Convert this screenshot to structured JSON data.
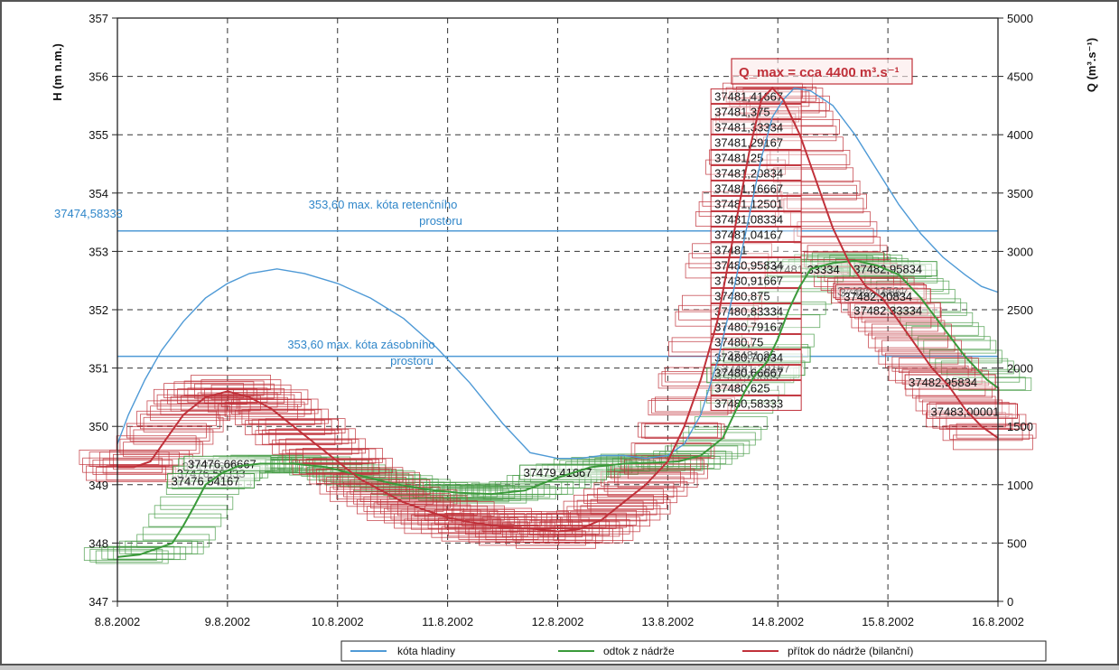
{
  "chart_data": {
    "type": "line",
    "x": [
      "8.8.2002",
      "9.8.2002",
      "10.8.2002",
      "11.8.2002",
      "12.8.2002",
      "13.8.2002",
      "14.8.2002",
      "15.8.2002",
      "16.8.2002"
    ],
    "xlim": [
      "8.8.2002",
      "16.8.2002"
    ],
    "ylabel": "H (m n.m.)",
    "ylim": [
      347,
      357
    ],
    "y2label": "Q (m³.s⁻¹)",
    "y2lim": [
      0,
      5000
    ],
    "yticks": [
      "347",
      "348",
      "349",
      "350",
      "351",
      "352",
      "353",
      "354",
      "355",
      "356",
      "357"
    ],
    "y2ticks": [
      "0",
      "500",
      "1000",
      "1500",
      "2000",
      "2500",
      "3000",
      "3500",
      "4000",
      "4500",
      "5000"
    ],
    "grid": true,
    "legend_position": "bottom",
    "series": [
      {
        "name": "kóta hladiny",
        "color": "#4f9ad6",
        "axis": "left",
        "x": [
          8.0,
          8.1,
          8.25,
          8.4,
          8.6,
          8.8,
          9.0,
          9.2,
          9.45,
          9.7,
          10.0,
          10.3,
          10.6,
          10.9,
          11.2,
          11.5,
          11.75,
          12.0,
          12.2,
          12.4,
          12.6,
          12.8,
          13.0,
          13.15,
          13.3,
          13.45,
          13.55,
          13.65,
          13.75,
          13.85,
          13.95,
          14.05,
          14.15,
          14.3,
          14.5,
          14.7,
          14.9,
          15.1,
          15.3,
          15.5,
          15.7,
          15.85,
          16.0
        ],
        "values": [
          349.7,
          350.2,
          350.8,
          351.3,
          351.8,
          352.2,
          352.45,
          352.62,
          352.7,
          352.62,
          352.45,
          352.2,
          351.85,
          351.35,
          350.75,
          350.05,
          349.55,
          349.45,
          349.45,
          349.5,
          349.5,
          349.45,
          349.5,
          349.7,
          350.2,
          351.1,
          351.9,
          352.8,
          353.7,
          354.6,
          355.3,
          355.6,
          355.8,
          355.75,
          355.5,
          355.0,
          354.4,
          353.8,
          353.3,
          352.9,
          352.6,
          352.4,
          352.3
        ]
      },
      {
        "name": "odtok z nádrže",
        "color": "#3a9a3a",
        "axis": "right",
        "x": [
          8.0,
          8.2,
          8.35,
          8.5,
          8.6,
          8.7,
          8.8,
          8.95,
          9.1,
          9.3,
          9.6,
          9.9,
          10.2,
          10.5,
          10.8,
          11.1,
          11.4,
          11.7,
          12.0,
          12.3,
          12.6,
          12.9,
          13.1,
          13.3,
          13.5,
          13.6,
          13.7,
          13.8,
          13.9,
          14.0,
          14.1,
          14.2,
          14.3,
          14.5,
          14.7,
          14.9,
          15.1,
          15.3,
          15.5,
          15.7,
          15.9,
          16.0
        ],
        "values": [
          380,
          400,
          450,
          500,
          650,
          820,
          1000,
          1100,
          1160,
          1180,
          1180,
          1150,
          1080,
          1010,
          960,
          930,
          920,
          950,
          1060,
          1150,
          1180,
          1190,
          1200,
          1250,
          1400,
          1600,
          1800,
          1950,
          2050,
          2250,
          2500,
          2700,
          2850,
          2900,
          2920,
          2880,
          2800,
          2600,
          2350,
          2100,
          1900,
          1830
        ]
      },
      {
        "name": "přítok do nádrže (bilanční)",
        "color": "#c0313a",
        "axis": "right",
        "x": [
          8.0,
          8.15,
          8.3,
          8.45,
          8.6,
          8.8,
          9.0,
          9.2,
          9.4,
          9.6,
          9.8,
          10.0,
          10.2,
          10.4,
          10.6,
          10.8,
          11.0,
          11.2,
          11.4,
          11.6,
          11.8,
          12.0,
          12.2,
          12.4,
          12.6,
          12.8,
          13.0,
          13.15,
          13.3,
          13.45,
          13.55,
          13.65,
          13.75,
          13.85,
          13.95,
          14.05,
          14.2,
          14.35,
          14.5,
          14.65,
          14.8,
          14.95,
          15.1,
          15.25,
          15.4,
          15.55,
          15.7,
          15.85,
          16.0
        ],
        "values": [
          1150,
          1150,
          1200,
          1400,
          1600,
          1750,
          1800,
          1750,
          1650,
          1500,
          1350,
          1200,
          1050,
          950,
          850,
          780,
          720,
          680,
          650,
          630,
          620,
          600,
          620,
          700,
          850,
          1000,
          1200,
          1500,
          1900,
          2400,
          2900,
          3400,
          3900,
          4300,
          4400,
          4300,
          4000,
          3600,
          3200,
          2900,
          2700,
          2600,
          2400,
          2200,
          2000,
          1850,
          1650,
          1500,
          1400
        ]
      }
    ],
    "annotations": [
      {
        "text": "353,60 max. kóta retenčního",
        "text2": "prostoru",
        "level": 353.35,
        "axis": "left",
        "color": "#4f9ad6"
      },
      {
        "text": "353,60 max. kóta zásobního",
        "text2": "prostoru",
        "level": 351.2,
        "axis": "left",
        "color": "#4f9ad6"
      },
      {
        "text": "Q_max = cca 4400 m³.s⁻¹",
        "color": "#c0313a"
      }
    ],
    "point_labels": {
      "left_side": "37474,58333",
      "green_group": [
        "37476,625",
        "37476,58333",
        "37476,54167",
        "37476,66667",
        "37479,41667",
        "37481,33334",
        "37481,20834",
        "37481,16667",
        "37481,29167",
        "37481,25",
        "37482,95834"
      ],
      "red_group": [
        "37481,41667",
        "37481,375",
        "37481,33334",
        "37481,29167",
        "37481,25",
        "37481,20834",
        "37481,16667",
        "37481,12501",
        "37481,08334",
        "37481,04167",
        "37481",
        "37480,95834",
        "37480,91667",
        "37480,875",
        "37480,83334",
        "37480,79167",
        "37480,75",
        "37480,70834",
        "37480,66667",
        "37480,625",
        "37480,58333",
        "37482,12501",
        "37482,16667",
        "37482,20834",
        "37482,33334",
        "37482,95834",
        "37483,00001"
      ]
    }
  }
}
